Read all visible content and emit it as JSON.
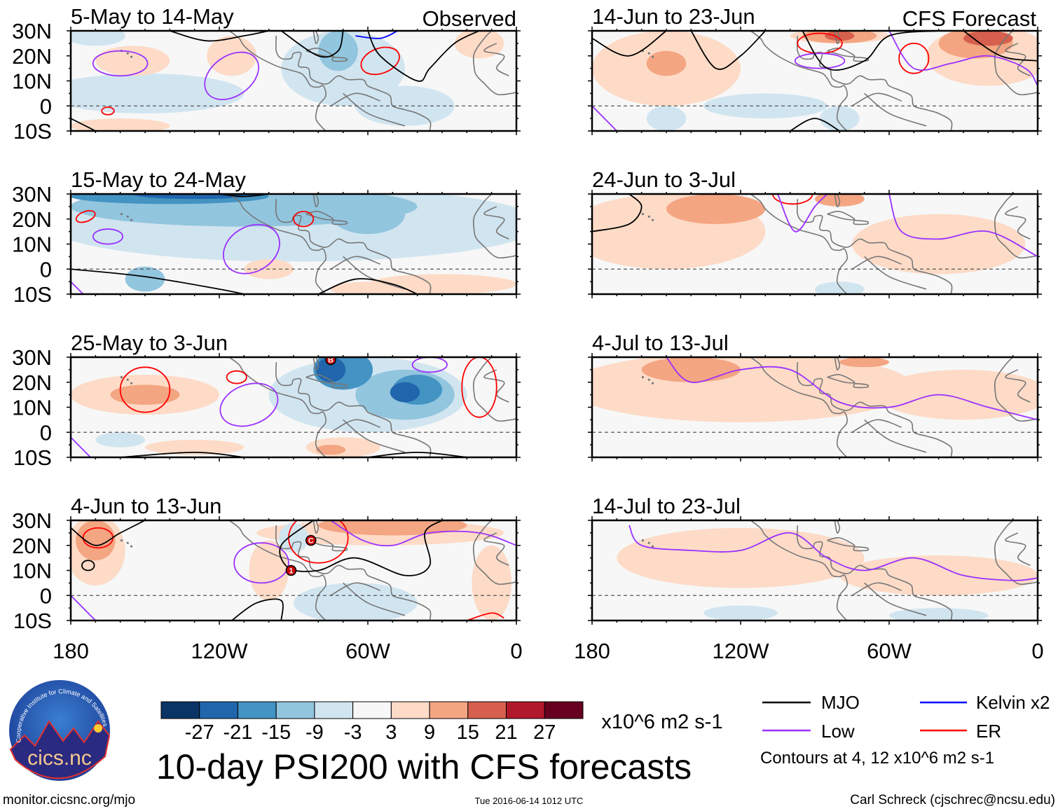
{
  "headers": {
    "observed": "Observed",
    "forecast": "CFS Forecast"
  },
  "panels": [
    {
      "title": "5-May to 14-May",
      "column": "observed"
    },
    {
      "title": "15-May to 24-May",
      "column": "observed"
    },
    {
      "title": "25-May to 3-Jun",
      "column": "observed"
    },
    {
      "title": "4-Jun to 13-Jun",
      "column": "observed"
    },
    {
      "title": "14-Jun to 23-Jun",
      "column": "forecast"
    },
    {
      "title": "24-Jun to 3-Jul",
      "column": "forecast"
    },
    {
      "title": "4-Jul to 13-Jul",
      "column": "forecast"
    },
    {
      "title": "14-Jul to 23-Jul",
      "column": "forecast"
    }
  ],
  "axes": {
    "lat_labels": [
      "30N",
      "20N",
      "10N",
      "0",
      "10S"
    ],
    "lon_labels": [
      "180",
      "120W",
      "60W",
      "0"
    ]
  },
  "storms": [
    {
      "panel": 2,
      "label": "B",
      "lon": -75,
      "lat": 29
    },
    {
      "panel": 3,
      "label": "1",
      "lon": -91,
      "lat": 10
    },
    {
      "panel": 3,
      "label": "C",
      "lon": -83,
      "lat": 22
    }
  ],
  "colorbar": {
    "colors": [
      "#0b3466",
      "#2166ac",
      "#4393c3",
      "#92c5de",
      "#d1e5f0",
      "#f7f7f7",
      "#fddbc7",
      "#f4a582",
      "#d6604d",
      "#b2182b",
      "#67001f"
    ],
    "ticks": [
      "-27",
      "-21",
      "-15",
      "-9",
      "-3",
      "3",
      "9",
      "15",
      "21",
      "27"
    ],
    "units": "x10^6 m2 s-1"
  },
  "title": "10-day PSI200 with CFS forecasts",
  "legend": {
    "items": [
      {
        "label": "MJO",
        "color": "#000000"
      },
      {
        "label": "Low",
        "color": "#9b30ff"
      },
      {
        "label": "Kelvin x2",
        "color": "#0000ff"
      },
      {
        "label": "ER",
        "color": "#ff0000"
      }
    ],
    "contours_note": "Contours at 4, 12 x10^6 m2 s-1"
  },
  "logo": {
    "text": "cics.nc",
    "ring_text": "Cooperative Institute for Climate and Satellites"
  },
  "footer": {
    "url": "monitor.cicsnc.org/mjo",
    "timestamp": "Tue 2016-06-14 1012 UTC",
    "author": "Carl Schreck (cjschrec@ncsu.edu)"
  }
}
